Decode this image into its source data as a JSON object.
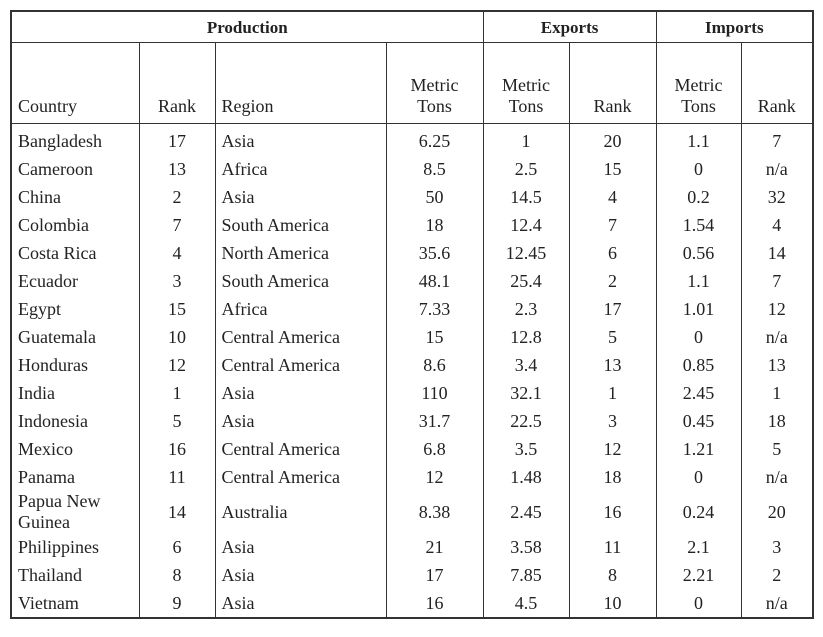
{
  "table": {
    "groups": [
      "Production",
      "Exports",
      "Imports"
    ],
    "columns": [
      "Country",
      "Rank",
      "Region",
      "Metric Tons",
      "Metric Tons",
      "Rank",
      "Metric Tons",
      "Rank"
    ],
    "rows": [
      [
        "Bangladesh",
        "17",
        "Asia",
        "6.25",
        "1",
        "20",
        "1.1",
        "7"
      ],
      [
        "Cameroon",
        "13",
        "Africa",
        "8.5",
        "2.5",
        "15",
        "0",
        "n/a"
      ],
      [
        "China",
        "2",
        "Asia",
        "50",
        "14.5",
        "4",
        "0.2",
        "32"
      ],
      [
        "Colombia",
        "7",
        "South America",
        "18",
        "12.4",
        "7",
        "1.54",
        "4"
      ],
      [
        "Costa Rica",
        "4",
        "North America",
        "35.6",
        "12.45",
        "6",
        "0.56",
        "14"
      ],
      [
        "Ecuador",
        "3",
        "South America",
        "48.1",
        "25.4",
        "2",
        "1.1",
        "7"
      ],
      [
        "Egypt",
        "15",
        "Africa",
        "7.33",
        "2.3",
        "17",
        "1.01",
        "12"
      ],
      [
        "Guatemala",
        "10",
        "Central America",
        "15",
        "12.8",
        "5",
        "0",
        "n/a"
      ],
      [
        "Honduras",
        "12",
        "Central America",
        "8.6",
        "3.4",
        "13",
        "0.85",
        "13"
      ],
      [
        "India",
        "1",
        "Asia",
        "110",
        "32.1",
        "1",
        "2.45",
        "1"
      ],
      [
        "Indonesia",
        "5",
        "Asia",
        "31.7",
        "22.5",
        "3",
        "0.45",
        "18"
      ],
      [
        "Mexico",
        "16",
        "Central America",
        "6.8",
        "3.5",
        "12",
        "1.21",
        "5"
      ],
      [
        "Panama",
        "11",
        "Central America",
        "12",
        "1.48",
        "18",
        "0",
        "n/a"
      ],
      [
        "Papua New Guinea",
        "14",
        "Australia",
        "8.38",
        "2.45",
        "16",
        "0.24",
        "20"
      ],
      [
        "Philippines",
        "6",
        "Asia",
        "21",
        "3.58",
        "11",
        "2.1",
        "3"
      ],
      [
        "Thailand",
        "8",
        "Asia",
        "17",
        "7.85",
        "8",
        "2.21",
        "2"
      ],
      [
        "Vietnam",
        "9",
        "Asia",
        "16",
        "4.5",
        "10",
        "0",
        "n/a"
      ]
    ]
  }
}
